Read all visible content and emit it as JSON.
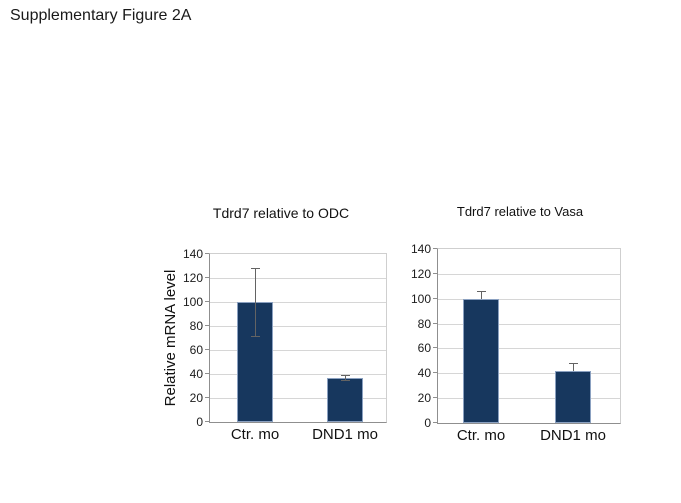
{
  "page": {
    "title": "Supplementary Figure 2A"
  },
  "chart_data": [
    {
      "type": "bar",
      "title": "Tdrd7 relative to ODC",
      "xlabel": "",
      "ylabel": "Relative mRNA level",
      "categories": [
        "Ctr. mo",
        "DND1 mo"
      ],
      "values": [
        100,
        37
      ],
      "errors": [
        28,
        2
      ],
      "ylim": [
        0,
        140
      ],
      "ytick_step": 20,
      "yticks": [
        0,
        20,
        40,
        60,
        80,
        100,
        120,
        140
      ],
      "grid": true,
      "legend": "none",
      "bar_color": "#17375E"
    },
    {
      "type": "bar",
      "title": "Tdrd7 relative to Vasa",
      "xlabel": "",
      "ylabel": "",
      "categories": [
        "Ctr. mo",
        "DND1 mo"
      ],
      "values": [
        100,
        42
      ],
      "errors": [
        6,
        6
      ],
      "ylim": [
        0,
        140
      ],
      "ytick_step": 20,
      "yticks": [
        0,
        20,
        40,
        60,
        80,
        100,
        120,
        140
      ],
      "grid": true,
      "legend": "none",
      "bar_color": "#17375E"
    }
  ]
}
